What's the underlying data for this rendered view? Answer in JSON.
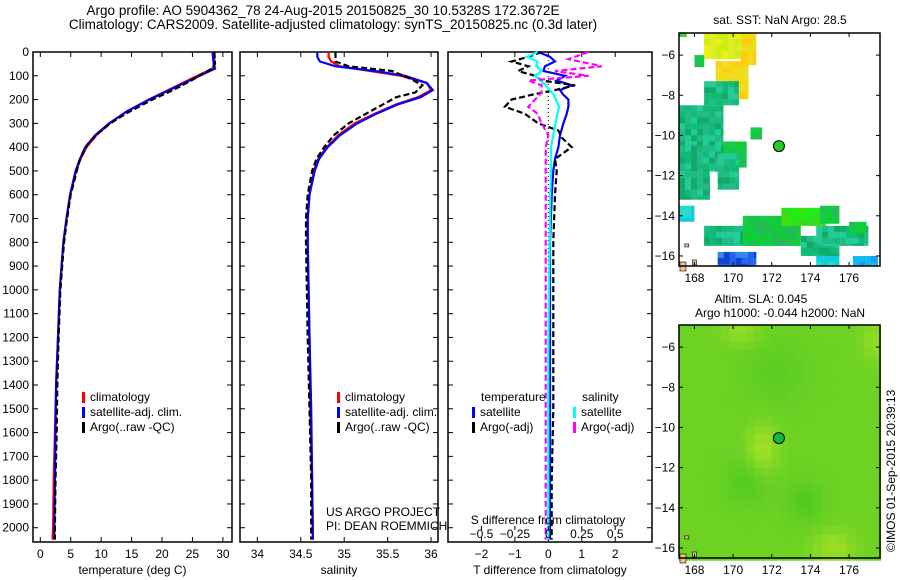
{
  "header": {
    "line1": "Argo profile: AO 5904362_78 24-Aug-2015 20150825_30 10.5328S 172.3672E",
    "line2": "Climatology: CARS2009. Satellite-adjusted climatology: synTS_20150825.nc (0.3d later)"
  },
  "credit": "©IMOS 01-Sep-2015 20:39:13",
  "colors": {
    "climatology": "#ff0000",
    "satellite": "#0000ff",
    "argo": "#000000",
    "sal_satellite": "#00ffff",
    "sal_argo": "#ff00ff"
  },
  "chart_data": [
    {
      "type": "line",
      "id": "temperature",
      "xlabel": "temperature (deg C)",
      "ylabel": "",
      "xlim": [
        -1.2,
        31.5
      ],
      "ylim": [
        2060,
        0
      ],
      "xticks": [
        0,
        5,
        10,
        15,
        20,
        25,
        30
      ],
      "yticks": [
        0,
        100,
        200,
        300,
        400,
        500,
        600,
        700,
        800,
        900,
        1000,
        1100,
        1200,
        1300,
        1400,
        1500,
        1600,
        1700,
        1800,
        1900,
        2000
      ],
      "legend": {
        "placement": "middle-center",
        "entries": [
          "climatology",
          "satellite-adj. clim.",
          "Argo(..raw -QC)"
        ]
      },
      "series": [
        {
          "name": "climatology",
          "style": "solid",
          "depth": [
            0,
            50,
            70,
            100,
            150,
            200,
            250,
            300,
            350,
            400,
            450,
            500,
            600,
            700,
            800,
            900,
            1000,
            1200,
            1400,
            1600,
            1800,
            2000,
            2050
          ],
          "values": [
            28.6,
            28.6,
            28.3,
            25.8,
            21.8,
            17.8,
            14.2,
            11.4,
            9.2,
            7.6,
            6.6,
            5.9,
            4.9,
            4.3,
            3.8,
            3.5,
            3.2,
            2.9,
            2.6,
            2.4,
            2.2,
            2.1,
            2.0
          ]
        },
        {
          "name": "satellite-adj. clim.",
          "style": "solid",
          "depth": [
            0,
            50,
            70,
            100,
            150,
            200,
            250,
            300,
            350,
            400,
            450,
            500,
            600,
            700,
            800,
            900,
            1000,
            1200,
            1400,
            1600,
            1800,
            2000,
            2050
          ],
          "values": [
            28.3,
            28.5,
            28.7,
            26.2,
            22.0,
            17.9,
            14.2,
            11.3,
            9.0,
            7.4,
            6.5,
            5.8,
            4.9,
            4.3,
            3.8,
            3.5,
            3.2,
            2.9,
            2.6,
            2.5,
            2.4,
            2.3,
            2.3
          ]
        },
        {
          "name": "Argo(..raw -QC)",
          "style": "dashed",
          "depth": [
            0,
            50,
            70,
            90,
            120,
            160,
            200,
            260,
            300,
            340,
            380,
            420,
            460,
            500,
            600,
            700,
            800,
            900,
            1000,
            1200,
            1400,
            1600,
            1800,
            2000,
            2050
          ],
          "values": [
            28.6,
            28.7,
            28.2,
            26.8,
            24.8,
            21.8,
            18.4,
            14.0,
            11.5,
            9.6,
            8.0,
            7.1,
            6.4,
            6.0,
            5.0,
            4.4,
            3.9,
            3.6,
            3.3,
            3.0,
            2.8,
            2.7,
            2.5,
            2.4,
            2.4
          ]
        }
      ]
    },
    {
      "type": "line",
      "id": "salinity",
      "xlabel": "salinity",
      "xlim": [
        33.8,
        36.08
      ],
      "ylim": [
        2060,
        0
      ],
      "xticks": [
        34,
        34.5,
        35,
        35.5,
        36
      ],
      "legend": {
        "placement": "middle-right",
        "entries": [
          "climatology",
          "satellite-adj. clim.",
          "Argo(..raw -QC)"
        ]
      },
      "annotation": [
        "US ARGO PROJECT",
        "PI: DEAN ROEMMICH"
      ],
      "series": [
        {
          "name": "climatology",
          "style": "solid",
          "depth": [
            0,
            20,
            40,
            60,
            80,
            100,
            130,
            160,
            190,
            220,
            260,
            300,
            350,
            400,
            450,
            500,
            600,
            700,
            800,
            1000,
            1200,
            1500,
            1800,
            2050
          ],
          "values": [
            34.82,
            34.82,
            34.85,
            34.95,
            35.3,
            35.65,
            35.95,
            36.0,
            35.85,
            35.6,
            35.35,
            35.12,
            34.93,
            34.8,
            34.7,
            34.65,
            34.6,
            34.58,
            34.58,
            34.59,
            34.6,
            34.61,
            34.63,
            34.64
          ]
        },
        {
          "name": "satellite-adj. clim.",
          "style": "solid",
          "depth": [
            0,
            20,
            40,
            60,
            80,
            100,
            130,
            160,
            190,
            220,
            260,
            300,
            350,
            400,
            450,
            500,
            600,
            700,
            800,
            1000,
            1200,
            1500,
            1800,
            2050
          ],
          "values": [
            34.69,
            34.69,
            34.72,
            34.9,
            35.35,
            35.7,
            35.95,
            36.02,
            35.88,
            35.62,
            35.37,
            35.15,
            34.95,
            34.81,
            34.71,
            34.66,
            34.6,
            34.58,
            34.58,
            34.59,
            34.6,
            34.62,
            34.63,
            34.64
          ]
        },
        {
          "name": "Argo(..raw -QC)",
          "style": "dashed",
          "depth": [
            0,
            40,
            60,
            80,
            110,
            140,
            170,
            190,
            220,
            260,
            300,
            350,
            400,
            450,
            500,
            600,
            700,
            800,
            1000,
            1200,
            1500,
            1800,
            2050
          ],
          "values": [
            34.9,
            34.9,
            35.05,
            35.55,
            35.75,
            35.9,
            35.82,
            35.6,
            35.45,
            35.25,
            35.05,
            34.88,
            34.77,
            34.68,
            34.63,
            34.58,
            34.56,
            34.56,
            34.57,
            34.58,
            34.6,
            34.62,
            34.62
          ]
        }
      ]
    },
    {
      "type": "line",
      "id": "differences",
      "xlabel": "T difference from climatology",
      "xlabel2": "S difference from climatology",
      "xlim": [
        -3.0,
        3.1
      ],
      "ylim": [
        2060,
        0
      ],
      "xticks": [
        -2,
        -1,
        0,
        1,
        2
      ],
      "xticks2": [
        -0.5,
        -0.25,
        0,
        0.25,
        0.5
      ],
      "xtick2_labels": [
        "-0.5",
        "-0.25",
        "0",
        "0.25",
        "0.5"
      ],
      "zero_line": "dotted",
      "legend": {
        "placement": "lower-center",
        "groups": [
          {
            "title": "temperature",
            "entries": [
              "satellite",
              "Argo(-adj)"
            ]
          },
          {
            "title": "salinity",
            "entries": [
              "satellite",
              "Argo(-adj)"
            ]
          }
        ]
      },
      "series": [
        {
          "name": "temperature satellite",
          "style": "solid",
          "depth": [
            0,
            20,
            40,
            60,
            80,
            100,
            120,
            140,
            160,
            180,
            200,
            230,
            260,
            300,
            350,
            400,
            450,
            500,
            600,
            800,
            1000,
            1200,
            1500,
            1800,
            2050
          ],
          "values": [
            -0.3,
            0.05,
            0.2,
            -0.1,
            -0.15,
            0.5,
            0.25,
            0.7,
            0.35,
            0.45,
            0.6,
            0.6,
            0.55,
            0.45,
            0.35,
            0.3,
            0.2,
            0.15,
            0.1,
            0.05,
            0.05,
            0.05,
            0.05,
            0.05,
            0.05
          ]
        },
        {
          "name": "temperature Argo(-adj)",
          "style": "dashed",
          "depth": [
            0,
            20,
            40,
            60,
            80,
            100,
            120,
            140,
            160,
            180,
            200,
            230,
            260,
            300,
            330,
            360,
            400,
            450,
            500,
            600,
            800,
            1000,
            1200,
            1500,
            1800,
            2050
          ],
          "values": [
            -0.2,
            -0.6,
            -1.1,
            -0.6,
            -0.9,
            -0.4,
            -0.2,
            0.8,
            0.2,
            -0.5,
            -1.1,
            -1.3,
            -0.7,
            -0.3,
            0.3,
            0.4,
            0.7,
            0.2,
            0.25,
            0.2,
            0.15,
            0.15,
            0.15,
            0.15,
            0.1,
            0.1
          ]
        },
        {
          "name": "salinity satellite",
          "style": "solid",
          "depth": [
            0,
            20,
            40,
            60,
            80,
            100,
            140,
            180,
            230,
            280,
            340,
            400,
            500,
            600,
            800,
            1000,
            1300,
            1600,
            2050
          ],
          "values": [
            -0.08,
            -0.16,
            -0.08,
            -0.09,
            -0.05,
            -0.1,
            -0.02,
            0.04,
            0.08,
            0.06,
            0.04,
            0.02,
            0.02,
            0.015,
            0.01,
            0.005,
            0.0,
            0.0,
            0.0
          ]
        },
        {
          "name": "salinity Argo(-adj)",
          "style": "dashed",
          "depth": [
            0,
            30,
            60,
            80,
            100,
            120,
            140,
            170,
            200,
            230,
            260,
            300,
            350,
            400,
            500,
            600,
            800,
            1000,
            1500,
            2050
          ],
          "values": [
            0.3,
            0.15,
            0.4,
            0.05,
            0.3,
            -0.15,
            -0.05,
            -0.05,
            -0.1,
            -0.15,
            -0.08,
            -0.05,
            0.0,
            -0.02,
            -0.02,
            -0.02,
            -0.02,
            -0.02,
            -0.02,
            -0.02
          ]
        }
      ]
    },
    {
      "type": "heatmap",
      "id": "sst-map",
      "title": "sat. SST: NaN Argo: 28.5",
      "xlim": [
        167.2,
        177.6
      ],
      "ylim": [
        -16.5,
        -4.9
      ],
      "xticks": [
        168,
        170,
        172,
        174,
        176
      ],
      "yticks": [
        -6,
        -8,
        -10,
        -12,
        -14,
        -16
      ],
      "float_position": {
        "lon": 172.37,
        "lat": -10.53
      }
    },
    {
      "type": "heatmap",
      "id": "sla-map",
      "title": "Altim. SLA: 0.045",
      "subtitle": "Argo h1000: -0.044 h2000: NaN",
      "xlim": [
        167.2,
        177.6
      ],
      "ylim": [
        -16.5,
        -4.9
      ],
      "xticks": [
        168,
        170,
        172,
        174,
        176
      ],
      "yticks": [
        -6,
        -8,
        -10,
        -12,
        -14,
        -16
      ],
      "float_position": {
        "lon": 172.37,
        "lat": -10.53
      }
    }
  ]
}
